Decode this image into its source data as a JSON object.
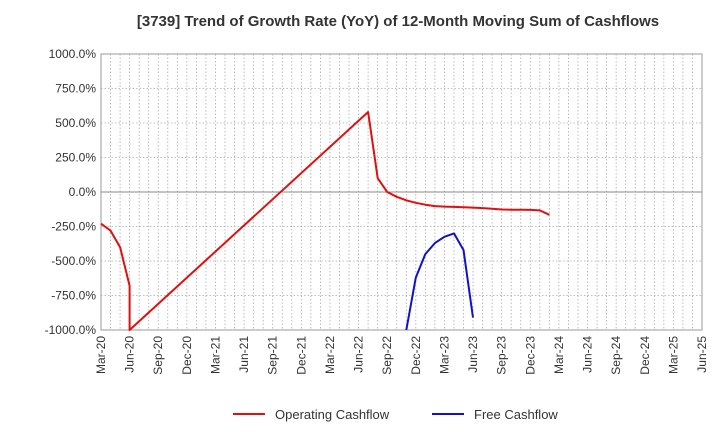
{
  "chart_data": {
    "type": "line",
    "title": "[3739]  Trend of Growth Rate (YoY) of 12-Month Moving Sum of Cashflows",
    "xlabel": "",
    "ylabel": "",
    "x_start": "Mar-20",
    "x_end": "Jun-25",
    "x_ticks": [
      "Mar-20",
      "Jun-20",
      "Sep-20",
      "Dec-20",
      "Mar-21",
      "Jun-21",
      "Sep-21",
      "Dec-21",
      "Mar-22",
      "Jun-22",
      "Sep-22",
      "Dec-22",
      "Mar-23",
      "Jun-23",
      "Sep-23",
      "Dec-23",
      "Mar-24",
      "Jun-24",
      "Sep-24",
      "Dec-24",
      "Mar-25",
      "Jun-25"
    ],
    "ylim": [
      -1000,
      1000
    ],
    "y_ticks": [
      1000,
      750,
      500,
      250,
      0,
      -250,
      -500,
      -750,
      -1000
    ],
    "y_tick_labels": [
      "1000.0%",
      "750.0%",
      "500.0%",
      "250.0%",
      "0.0%",
      "-250.0%",
      "-500.0%",
      "-750.0%",
      "-1000.0%"
    ],
    "grid": true,
    "legend_position": "bottom",
    "series": [
      {
        "name": "Operating Cashflow",
        "color": "#dd1111",
        "points": [
          [
            "Mar-20",
            -230
          ],
          [
            "Apr-20",
            -280
          ],
          [
            "May-20",
            -400
          ],
          [
            "Jun-20",
            -680
          ],
          [
            "Jun-20",
            -1000
          ],
          [
            "Jul-22",
            580
          ],
          [
            "Aug-22",
            100
          ],
          [
            "Sep-22",
            0
          ],
          [
            "Oct-22",
            -35
          ],
          [
            "Nov-22",
            -60
          ],
          [
            "Dec-22",
            -78
          ],
          [
            "Jan-23",
            -92
          ],
          [
            "Feb-23",
            -102
          ],
          [
            "Mar-23",
            -106
          ],
          [
            "Apr-23",
            -108
          ],
          [
            "May-23",
            -110
          ],
          [
            "Jun-23",
            -113
          ],
          [
            "Jul-23",
            -117
          ],
          [
            "Aug-23",
            -122
          ],
          [
            "Sep-23",
            -127
          ],
          [
            "Oct-23",
            -128
          ],
          [
            "Nov-23",
            -128
          ],
          [
            "Dec-23",
            -130
          ],
          [
            "Jan-24",
            -133
          ],
          [
            "Feb-24",
            -165
          ]
        ]
      },
      {
        "name": "Free Cashflow",
        "color": "#1111cc",
        "points": [
          [
            "Nov-22",
            -1000
          ],
          [
            "Dec-22",
            -620
          ],
          [
            "Jan-23",
            -450
          ],
          [
            "Feb-23",
            -370
          ],
          [
            "Mar-23",
            -325
          ],
          [
            "Apr-23",
            -300
          ],
          [
            "May-23",
            -420
          ],
          [
            "Jun-23",
            -910
          ]
        ]
      }
    ]
  }
}
